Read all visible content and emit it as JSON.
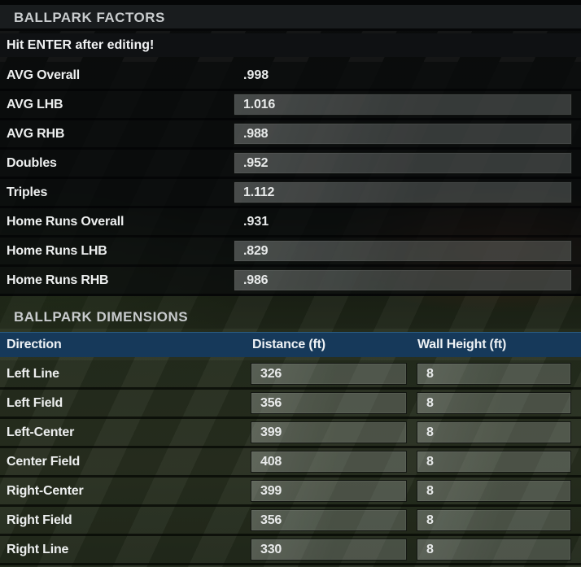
{
  "factors_section": {
    "title": "BALLPARK FACTORS",
    "notice": "Hit ENTER after editing!",
    "rows": [
      {
        "label": "AVG Overall",
        "value": ".998",
        "editable": false
      },
      {
        "label": "AVG LHB",
        "value": "1.016",
        "editable": true
      },
      {
        "label": "AVG RHB",
        "value": ".988",
        "editable": true
      },
      {
        "label": "Doubles",
        "value": ".952",
        "editable": true
      },
      {
        "label": "Triples",
        "value": "1.112",
        "editable": true
      },
      {
        "label": "Home Runs Overall",
        "value": ".931",
        "editable": false
      },
      {
        "label": "Home Runs LHB",
        "value": ".829",
        "editable": true
      },
      {
        "label": "Home Runs RHB",
        "value": ".986",
        "editable": true
      }
    ]
  },
  "dimensions_section": {
    "title": "BALLPARK DIMENSIONS",
    "columns": {
      "direction": "Direction",
      "distance": "Distance (ft)",
      "wall_height": "Wall Height (ft)"
    },
    "rows": [
      {
        "direction": "Left Line",
        "distance": "326",
        "wall_height": "8"
      },
      {
        "direction": "Left Field",
        "distance": "356",
        "wall_height": "8"
      },
      {
        "direction": "Left-Center",
        "distance": "399",
        "wall_height": "8"
      },
      {
        "direction": "Center Field",
        "distance": "408",
        "wall_height": "8"
      },
      {
        "direction": "Right-Center",
        "distance": "399",
        "wall_height": "8"
      },
      {
        "direction": "Right Field",
        "distance": "356",
        "wall_height": "8"
      },
      {
        "direction": "Right Line",
        "distance": "330",
        "wall_height": "8"
      }
    ]
  },
  "colors": {
    "table_header_blue": "#16395a",
    "table_header_top_edge": "#2b5d83",
    "section_header_bg": "#191c1e",
    "field_green": "#2b3322",
    "infield_brown": "#7d321e"
  }
}
